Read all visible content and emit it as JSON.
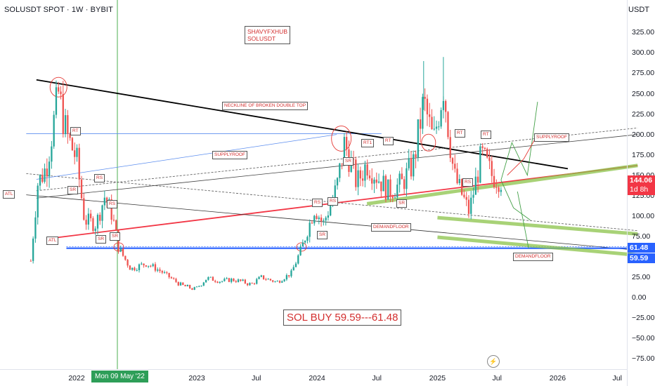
{
  "header": {
    "title": "SOLUSDT SPOT · 1W · BYBIT",
    "currency": "USDT"
  },
  "axis": {
    "y_ticks": [
      "325.00",
      "300.00",
      "275.00",
      "250.00",
      "225.00",
      "200.00",
      "175.00",
      "150.00",
      "125.00",
      "100.00",
      "75.00",
      "50.00",
      "25.00",
      "0.00",
      "−25.00",
      "−50.00",
      "−75.00"
    ],
    "x_ticks": [
      "2022",
      "2023",
      "Jul",
      "2024",
      "Jul",
      "2025",
      "Jul",
      "2026",
      "Jul"
    ],
    "crosshair_date": "Mon 09 May '22"
  },
  "price_labels": {
    "current": "144.06",
    "countdown": "1d 8h",
    "upper": "61.48",
    "lower": "59.59"
  },
  "annotations": {
    "signature_line1": "SHAVYFXHUB",
    "signature_line2": "SOLUSDT",
    "buy": "SOL BUY 59.59---61.48",
    "neckline": "NECKLINE OF BROKEN DOUBLE TOP",
    "supplyroof_1": "SUPPLYROOF",
    "supplyroof_2": "SUPPLYROOF",
    "demandfloor_1": "DEMANDFLOOR",
    "demandfloor_2": "DEMANDFLOOR",
    "atl_1": "ATL",
    "atl_2": "ATL",
    "rt_1": "RT",
    "rt_2": "RT",
    "rt_3": "RT",
    "rt_4": "RT",
    "rt1": "RT1",
    "rs_1": "RS",
    "rs_2": "RS",
    "rs_3": "RS",
    "rs_4": "RS",
    "rs_5": "RS",
    "sr_1": "SR",
    "sr_2": "SR",
    "sr_3": "SR",
    "sr_4": "SR",
    "sr_5": "SR",
    "sr_6": "SR"
  },
  "colors": {
    "up": "#26a69a",
    "down": "#ef5350",
    "trend_red": "#f23645",
    "neckline": "#000000",
    "zone": "#8bc34a",
    "level_blue": "#2962ff"
  },
  "chart_data": {
    "type": "candlestick",
    "symbol": "SOLUSDT",
    "timeframe": "1W",
    "ylim": [
      -85,
      345
    ],
    "x_range": [
      "2021-08",
      "2027-07"
    ],
    "key_levels": {
      "buy_zone": [
        59.59,
        61.48
      ],
      "current_price": 144.06
    },
    "price_path": [
      [
        "2021-08-15",
        45
      ],
      [
        "2021-09-05",
        140
      ],
      [
        "2021-10-01",
        160
      ],
      [
        "2021-11-07",
        250
      ],
      [
        "2021-12-01",
        200
      ],
      [
        "2022-01-01",
        170
      ],
      [
        "2022-01-25",
        95
      ],
      [
        "2022-03-01",
        90
      ],
      [
        "2022-03-28",
        125
      ],
      [
        "2022-04-20",
        100
      ],
      [
        "2022-05-09",
        60
      ],
      [
        "2022-06-15",
        35
      ],
      [
        "2022-08-01",
        42
      ],
      [
        "2022-09-15",
        32
      ],
      [
        "2022-11-15",
        15
      ],
      [
        "2022-12-28",
        10
      ],
      [
        "2023-02-01",
        24
      ],
      [
        "2023-03-15",
        20
      ],
      [
        "2023-04-15",
        22
      ],
      [
        "2023-05-15",
        20
      ],
      [
        "2023-06-15",
        16
      ],
      [
        "2023-07-15",
        25
      ],
      [
        "2023-09-01",
        19
      ],
      [
        "2023-10-15",
        30
      ],
      [
        "2023-11-15",
        60
      ],
      [
        "2023-12-25",
        110
      ],
      [
        "2024-01-20",
        90
      ],
      [
        "2024-03-01",
        135
      ],
      [
        "2024-03-25",
        190
      ],
      [
        "2024-05-01",
        140
      ],
      [
        "2024-06-01",
        165
      ],
      [
        "2024-08-05",
        130
      ],
      [
        "2024-09-15",
        140
      ],
      [
        "2024-10-20",
        165
      ],
      [
        "2024-11-20",
        240
      ],
      [
        "2024-12-20",
        190
      ],
      [
        "2025-01-19",
        260
      ],
      [
        "2025-02-20",
        150
      ],
      [
        "2025-04-07",
        105
      ],
      [
        "2025-05-15",
        175
      ],
      [
        "2025-06-15",
        150
      ],
      [
        "2025-07-13",
        144
      ]
    ]
  }
}
